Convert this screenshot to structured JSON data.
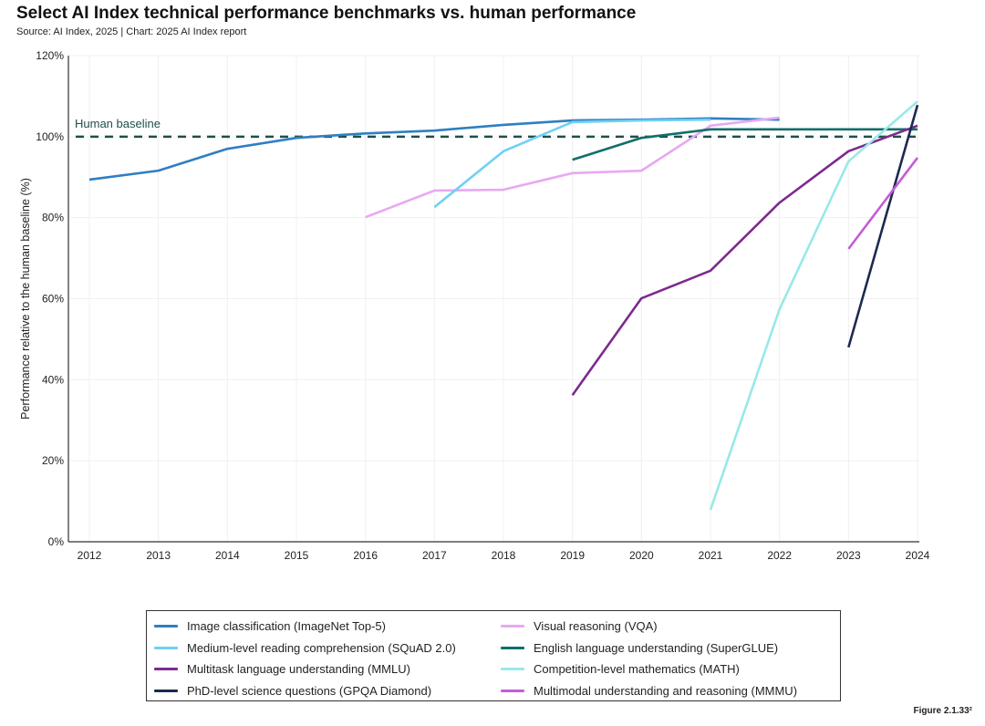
{
  "title": "Select AI Index technical performance benchmarks vs. human performance",
  "subtitle": "Source: AI Index, 2025 | Chart: 2025 AI Index report",
  "figure_label": "Figure 2.1.33²",
  "chart_data": {
    "type": "line",
    "title": "Select AI Index technical performance benchmarks vs. human performance",
    "xlabel": "",
    "ylabel": "Performance relative to the human baseline (%)",
    "x": [
      2012,
      2013,
      2014,
      2015,
      2016,
      2017,
      2018,
      2019,
      2020,
      2021,
      2022,
      2023,
      2024
    ],
    "xlim": [
      2012,
      2024
    ],
    "ylim": [
      0,
      120
    ],
    "yticks": [
      0,
      20,
      40,
      60,
      80,
      100,
      120
    ],
    "ytick_labels": [
      "0%",
      "20%",
      "40%",
      "60%",
      "80%",
      "100%",
      "120%"
    ],
    "grid": true,
    "legend_placement": "bottom",
    "reference_line": {
      "label": "Human baseline",
      "value": 100,
      "color": "#1f4f4a",
      "style": "dashed"
    },
    "series": [
      {
        "name": "Image classification (ImageNet Top-5)",
        "color": "#2f7fc1",
        "points": [
          [
            2012,
            89.4
          ],
          [
            2013,
            91.6
          ],
          [
            2014,
            97.0
          ],
          [
            2015,
            99.7
          ],
          [
            2016,
            100.8
          ],
          [
            2017,
            101.5
          ],
          [
            2018,
            102.9
          ],
          [
            2019,
            104.0
          ],
          [
            2020,
            104.2
          ],
          [
            2021,
            104.5
          ],
          [
            2022,
            104.2
          ]
        ]
      },
      {
        "name": "Visual reasoning (VQA)",
        "color": "#e8a8f2",
        "points": [
          [
            2016,
            80.1
          ],
          [
            2017,
            86.7
          ],
          [
            2018,
            86.9
          ],
          [
            2019,
            91.0
          ],
          [
            2020,
            91.6
          ],
          [
            2021,
            102.7
          ],
          [
            2022,
            104.7
          ]
        ]
      },
      {
        "name": "Medium-level reading comprehension (SQuAD 2.0)",
        "color": "#6fd0f5",
        "points": [
          [
            2017,
            82.6
          ],
          [
            2018,
            96.4
          ],
          [
            2019,
            103.6
          ],
          [
            2020,
            104.0
          ],
          [
            2021,
            104.2
          ]
        ]
      },
      {
        "name": "English language understanding (SuperGLUE)",
        "color": "#116e6a",
        "points": [
          [
            2019,
            94.3
          ],
          [
            2020,
            99.7
          ],
          [
            2021,
            101.8
          ],
          [
            2022,
            101.8
          ],
          [
            2023,
            101.8
          ],
          [
            2024,
            101.8
          ]
        ]
      },
      {
        "name": "Multitask language understanding (MMLU)",
        "color": "#7d2a8e",
        "points": [
          [
            2019,
            36.2
          ],
          [
            2020,
            60.1
          ],
          [
            2021,
            66.9
          ],
          [
            2022,
            83.7
          ],
          [
            2023,
            96.4
          ],
          [
            2024,
            102.7
          ]
        ]
      },
      {
        "name": "Competition-level mathematics (MATH)",
        "color": "#98e9e6",
        "points": [
          [
            2021,
            7.9
          ],
          [
            2022,
            57.4
          ],
          [
            2023,
            93.9
          ],
          [
            2024,
            108.7
          ]
        ]
      },
      {
        "name": "PhD-level science questions (GPQA Diamond)",
        "color": "#1b2a50",
        "points": [
          [
            2023,
            48.0
          ],
          [
            2024,
            107.8
          ]
        ]
      },
      {
        "name": "Multimodal understanding and reasoning (MMMU)",
        "color": "#c65bd9",
        "points": [
          [
            2023,
            72.3
          ],
          [
            2024,
            94.8
          ]
        ]
      }
    ],
    "legend_order": [
      0,
      1,
      2,
      3,
      4,
      5,
      6,
      7
    ]
  }
}
